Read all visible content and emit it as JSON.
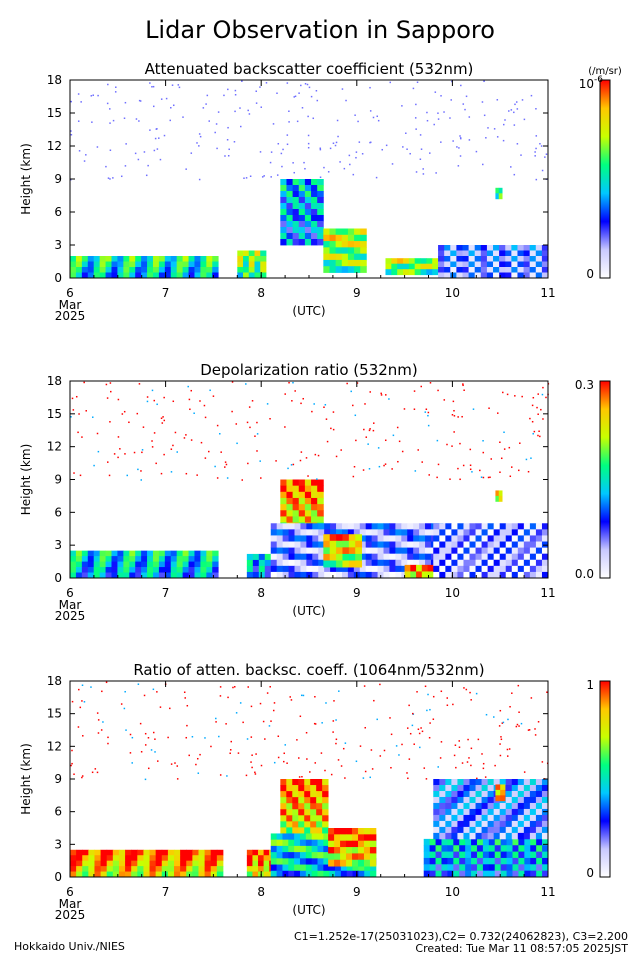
{
  "title": "Lidar Observation in Sapporo",
  "footer": {
    "credit": "Hokkaido Univ./NIES",
    "constants": "C1=1.252e-17(25031023),C2= 0.732(24062823), C3=2.200",
    "created": "Created: Tue Mar 11 08:57:05 2025JST"
  },
  "colors": {
    "colorbar": [
      "#ffffff",
      "#c8c8ff",
      "#0000ff",
      "#00c8ff",
      "#00ff80",
      "#c8ff00",
      "#ffc800",
      "#ff0000"
    ]
  },
  "chart_data": [
    {
      "type": "heatmap",
      "title": "Attenuated backscatter coefficient (532nm)",
      "ylabel": "Height (km)",
      "xlabel": "(UTC)",
      "x_ticks": [
        "6",
        "7",
        "8",
        "9",
        "10",
        "11"
      ],
      "x_tick_sub": [
        "Mar",
        "2025"
      ],
      "y_ticks": [
        "0",
        "3",
        "6",
        "9",
        "12",
        "15",
        "18"
      ],
      "xlim": [
        6,
        11
      ],
      "ylim": [
        0,
        18
      ],
      "colorbar": {
        "min_label": "0",
        "max_label": "10",
        "max_exp": "-6",
        "unit": "(/m/sr)"
      },
      "features": [
        {
          "t0": 6.0,
          "t1": 7.55,
          "h0": 0.0,
          "h1": 2.0,
          "level": 0.55
        },
        {
          "t0": 7.75,
          "t1": 8.05,
          "h0": 0.0,
          "h1": 2.5,
          "level": 0.7
        },
        {
          "t0": 8.2,
          "t1": 8.65,
          "h0": 3.0,
          "h1": 9.0,
          "level": 0.45
        },
        {
          "t0": 8.65,
          "t1": 9.1,
          "h0": 0.5,
          "h1": 4.5,
          "level": 0.75
        },
        {
          "t0": 9.3,
          "t1": 9.85,
          "h0": 0.3,
          "h1": 1.8,
          "level": 0.7
        },
        {
          "t0": 9.85,
          "t1": 11.0,
          "h0": 0.0,
          "h1": 3.0,
          "level": 0.25
        },
        {
          "t0": 10.45,
          "t1": 10.52,
          "h0": 7.2,
          "h1": 8.2,
          "level": 0.6
        }
      ]
    },
    {
      "type": "heatmap",
      "title": "Depolarization ratio (532nm)",
      "ylabel": "Height (km)",
      "xlabel": "(UTC)",
      "x_ticks": [
        "6",
        "7",
        "8",
        "9",
        "10",
        "11"
      ],
      "x_tick_sub": [
        "Mar",
        "2025"
      ],
      "y_ticks": [
        "0",
        "3",
        "6",
        "9",
        "12",
        "15",
        "18"
      ],
      "xlim": [
        6,
        11
      ],
      "ylim": [
        0,
        18
      ],
      "colorbar": {
        "min_label": "0.0",
        "max_label": "0.3"
      },
      "features": [
        {
          "t0": 6.0,
          "t1": 7.55,
          "h0": 0.0,
          "h1": 2.5,
          "level": 0.5
        },
        {
          "t0": 7.85,
          "t1": 8.1,
          "h0": 0.0,
          "h1": 2.2,
          "level": 0.45
        },
        {
          "t0": 8.2,
          "t1": 8.65,
          "h0": 4.5,
          "h1": 9.0,
          "level": 0.95
        },
        {
          "t0": 8.1,
          "t1": 9.9,
          "h0": 0.0,
          "h1": 5.0,
          "level": 0.22
        },
        {
          "t0": 8.65,
          "t1": 9.05,
          "h0": 1.0,
          "h1": 4.0,
          "level": 0.85
        },
        {
          "t0": 9.5,
          "t1": 9.8,
          "h0": 0.0,
          "h1": 1.2,
          "level": 0.9
        },
        {
          "t0": 9.8,
          "t1": 11.0,
          "h0": 0.0,
          "h1": 5.0,
          "level": 0.18
        },
        {
          "t0": 10.45,
          "t1": 10.52,
          "h0": 7.0,
          "h1": 8.0,
          "level": 0.9
        }
      ]
    },
    {
      "type": "heatmap",
      "title": "Ratio of atten. backsc. coeff. (1064nm/532nm)",
      "ylabel": "Height (km)",
      "xlabel": "(UTC)",
      "x_ticks": [
        "6",
        "7",
        "8",
        "9",
        "10",
        "11"
      ],
      "x_tick_sub": [
        "Mar",
        "2025"
      ],
      "y_ticks": [
        "0",
        "3",
        "6",
        "9",
        "12",
        "15",
        "18"
      ],
      "xlim": [
        6,
        11
      ],
      "ylim": [
        0,
        18
      ],
      "colorbar": {
        "min_label": "0",
        "max_label": "1"
      },
      "features": [
        {
          "t0": 6.0,
          "t1": 7.6,
          "h0": 0.0,
          "h1": 2.5,
          "level": 0.95
        },
        {
          "t0": 7.85,
          "t1": 8.2,
          "h0": 0.0,
          "h1": 2.5,
          "level": 0.95
        },
        {
          "t0": 8.2,
          "t1": 8.7,
          "h0": 4.0,
          "h1": 9.0,
          "level": 0.95
        },
        {
          "t0": 8.1,
          "t1": 9.2,
          "h0": 0.0,
          "h1": 4.0,
          "level": 0.55
        },
        {
          "t0": 8.7,
          "t1": 9.2,
          "h0": 1.0,
          "h1": 4.5,
          "level": 0.95
        },
        {
          "t0": 9.7,
          "t1": 11.0,
          "h0": 0.0,
          "h1": 3.5,
          "level": 0.45
        },
        {
          "t0": 9.8,
          "t1": 11.0,
          "h0": 3.5,
          "h1": 9.0,
          "level": 0.3
        },
        {
          "t0": 10.45,
          "t1": 10.55,
          "h0": 7.0,
          "h1": 8.5,
          "level": 0.95
        }
      ]
    }
  ]
}
